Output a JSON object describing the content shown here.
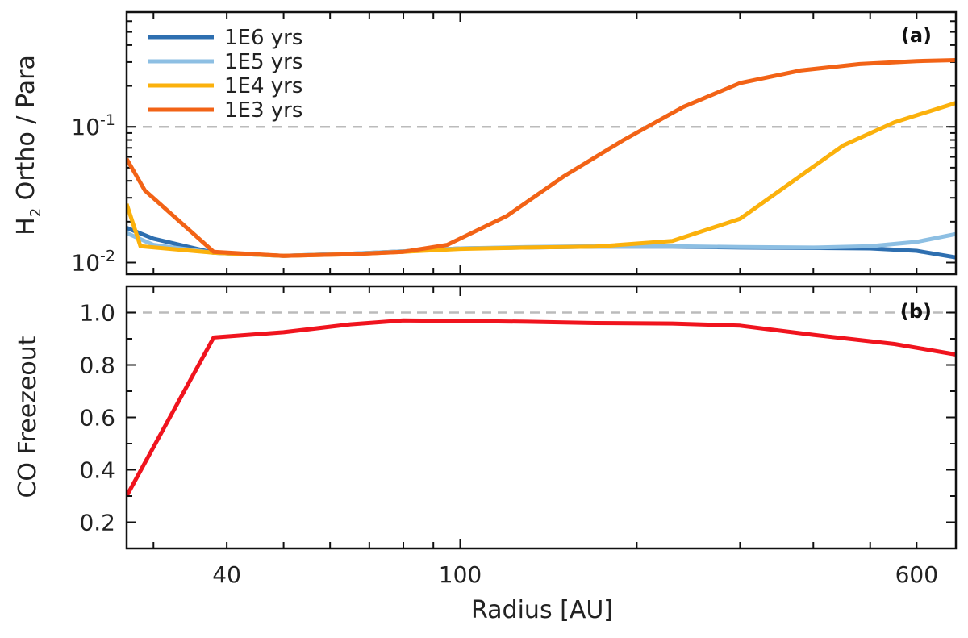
{
  "chart_data": [
    {
      "id": "a",
      "type": "line",
      "panel_label": "(a)",
      "ylabel_main": "H",
      "ylabel_sub": "2",
      "ylabel_rest": " Ortho / Para",
      "xscale": "log",
      "yscale": "log",
      "xlim": [
        27,
        700
      ],
      "ylim": [
        0.0082,
        0.7
      ],
      "yticks": [
        {
          "value": 0.1,
          "base": "10",
          "exp": "-1"
        },
        {
          "value": 0.01,
          "base": "10",
          "exp": "-2"
        }
      ],
      "reference_line": 0.1,
      "legend_position": "top-left",
      "series": [
        {
          "name": "1E6 yrs",
          "color": "#2e6fb0",
          "x": [
            27,
            30,
            38,
            50,
            65,
            80,
            100,
            130,
            170,
            230,
            300,
            400,
            500,
            600,
            700
          ],
          "y": [
            0.018,
            0.015,
            0.0118,
            0.0112,
            0.0116,
            0.0121,
            0.0127,
            0.0129,
            0.0131,
            0.0131,
            0.0129,
            0.0128,
            0.0127,
            0.0122,
            0.0109
          ]
        },
        {
          "name": "1E5 yrs",
          "color": "#8dbfe3",
          "x": [
            27,
            30,
            38,
            50,
            65,
            80,
            100,
            130,
            170,
            230,
            300,
            400,
            500,
            600,
            700
          ],
          "y": [
            0.0165,
            0.0135,
            0.0118,
            0.0112,
            0.0116,
            0.0121,
            0.0127,
            0.013,
            0.0132,
            0.0132,
            0.013,
            0.0129,
            0.0132,
            0.0142,
            0.0162
          ]
        },
        {
          "name": "1E4 yrs",
          "color": "#fbb10c",
          "x": [
            27,
            28.5,
            38,
            50,
            65,
            80,
            100,
            130,
            170,
            230,
            300,
            370,
            450,
            550,
            700
          ],
          "y": [
            0.027,
            0.0132,
            0.0118,
            0.0112,
            0.0115,
            0.012,
            0.0126,
            0.0129,
            0.0131,
            0.0144,
            0.021,
            0.04,
            0.073,
            0.108,
            0.15
          ]
        },
        {
          "name": "1E3 yrs",
          "color": "#f26316",
          "x": [
            27,
            29,
            38,
            50,
            65,
            80,
            95,
            120,
            150,
            190,
            240,
            300,
            380,
            480,
            600,
            700
          ],
          "y": [
            0.058,
            0.034,
            0.012,
            0.0112,
            0.0115,
            0.012,
            0.0135,
            0.022,
            0.043,
            0.08,
            0.14,
            0.21,
            0.26,
            0.29,
            0.305,
            0.31
          ]
        }
      ]
    },
    {
      "id": "b",
      "type": "line",
      "panel_label": "(b)",
      "ylabel": "CO Freezeout",
      "xlabel": "Radius [AU]",
      "xscale": "log",
      "yscale": "linear",
      "xlim": [
        27,
        700
      ],
      "ylim": [
        0.1,
        1.1
      ],
      "yticks": [
        0.2,
        0.4,
        0.6,
        0.8,
        1.0
      ],
      "ytick_labels": [
        "0.2",
        "0.4",
        "0.6",
        "0.8",
        "1.0"
      ],
      "xticks": [
        40,
        100,
        600
      ],
      "xtick_labels": [
        "40",
        "100",
        "600"
      ],
      "reference_line": 1.0,
      "series": [
        {
          "name": "CO Freezeout",
          "color": "#f0141e",
          "x": [
            27,
            38,
            50,
            65,
            80,
            100,
            130,
            170,
            230,
            300,
            400,
            550,
            700
          ],
          "y": [
            0.3,
            0.905,
            0.925,
            0.955,
            0.97,
            0.968,
            0.965,
            0.96,
            0.958,
            0.95,
            0.915,
            0.88,
            0.84
          ]
        }
      ]
    }
  ]
}
